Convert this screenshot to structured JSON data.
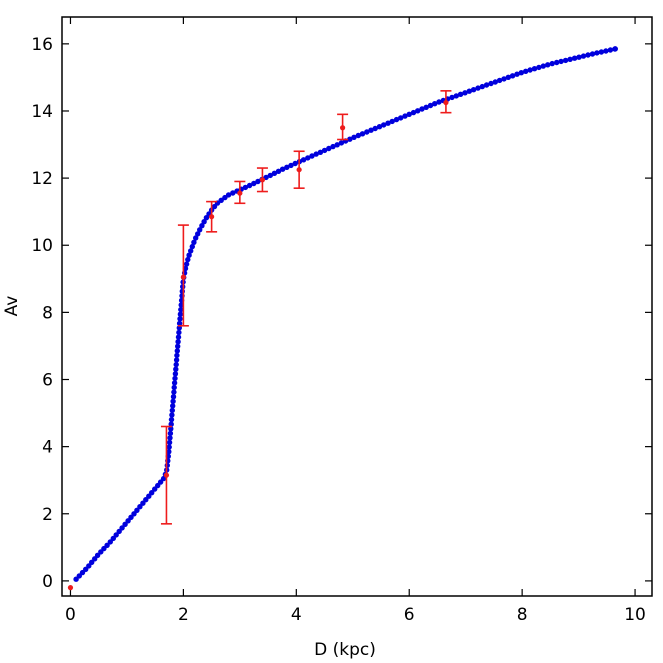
{
  "chart_data": {
    "type": "scatter",
    "title": "",
    "xlabel": "D (kpc)",
    "ylabel": "Av",
    "xlim": [
      -0.15,
      10.3
    ],
    "ylim": [
      -0.45,
      16.8
    ],
    "xticks": [
      0,
      2,
      4,
      6,
      8,
      10
    ],
    "yticks": [
      0,
      2,
      4,
      6,
      8,
      10,
      12,
      14,
      16
    ],
    "grid": false,
    "legend": "none",
    "series": [
      {
        "kind": "model-curve",
        "color": "#0000dd",
        "x": [
          0.1,
          0.3,
          0.5,
          0.7,
          0.9,
          1.1,
          1.3,
          1.5,
          1.65,
          1.7,
          1.72,
          1.75,
          1.8,
          1.85,
          1.9,
          1.95,
          2.0,
          2.05,
          2.1,
          2.2,
          2.3,
          2.4,
          2.5,
          2.6,
          2.8,
          3.0,
          3.2,
          3.5,
          3.8,
          4.2,
          4.6,
          5.0,
          5.5,
          6.0,
          6.5,
          7.0,
          7.5,
          8.0,
          8.5,
          9.0,
          9.3,
          9.65
        ],
        "y": [
          0.05,
          0.4,
          0.8,
          1.15,
          1.55,
          1.95,
          2.35,
          2.75,
          3.05,
          3.25,
          3.5,
          4.0,
          5.0,
          6.0,
          7.0,
          8.0,
          9.0,
          9.4,
          9.7,
          10.15,
          10.5,
          10.8,
          11.05,
          11.25,
          11.5,
          11.65,
          11.8,
          12.05,
          12.3,
          12.6,
          12.9,
          13.2,
          13.55,
          13.9,
          14.25,
          14.55,
          14.85,
          15.15,
          15.4,
          15.6,
          15.72,
          15.85
        ]
      },
      {
        "kind": "observed",
        "color": "#ee1c1c",
        "x": [
          0.0,
          1.7,
          2.0,
          2.5,
          3.0,
          3.4,
          4.05,
          4.82,
          6.65
        ],
        "y": [
          -0.2,
          3.15,
          9.05,
          10.85,
          11.55,
          11.95,
          12.25,
          13.5,
          14.25
        ],
        "err_low": [
          0,
          1.45,
          1.45,
          0.45,
          0.3,
          0.35,
          0.55,
          0.35,
          0.3
        ],
        "err_high": [
          0,
          1.45,
          1.55,
          0.45,
          0.35,
          0.35,
          0.55,
          0.4,
          0.35
        ]
      }
    ]
  }
}
